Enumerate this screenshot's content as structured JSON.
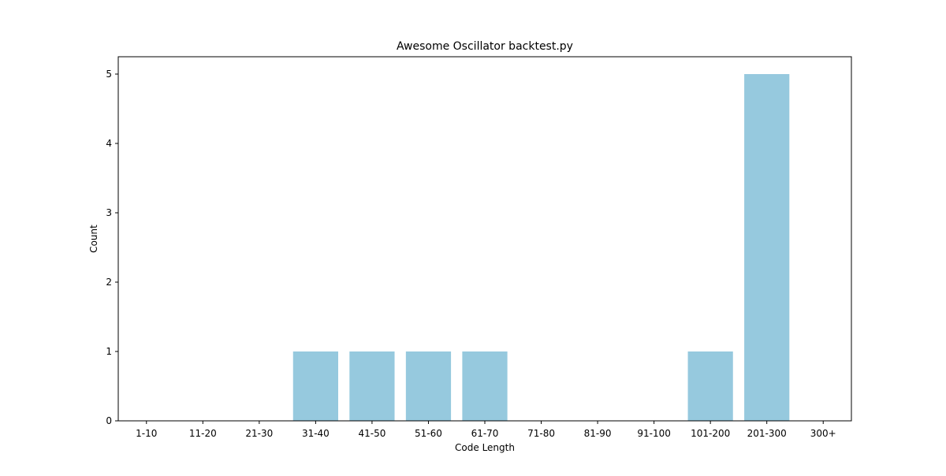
{
  "chart_data": {
    "type": "bar",
    "title": "Awesome Oscillator backtest.py",
    "xlabel": "Code Length",
    "ylabel": "Count",
    "categories": [
      "1-10",
      "11-20",
      "21-30",
      "31-40",
      "41-50",
      "51-60",
      "61-70",
      "71-80",
      "81-90",
      "91-100",
      "101-200",
      "201-300",
      "300+"
    ],
    "values": [
      0,
      0,
      0,
      1,
      1,
      1,
      1,
      0,
      0,
      0,
      1,
      5,
      0
    ],
    "ylim": [
      0,
      5.25
    ],
    "yticks": [
      0,
      1,
      2,
      3,
      4,
      5
    ],
    "grid": false,
    "bar_color": "#96c9de"
  }
}
